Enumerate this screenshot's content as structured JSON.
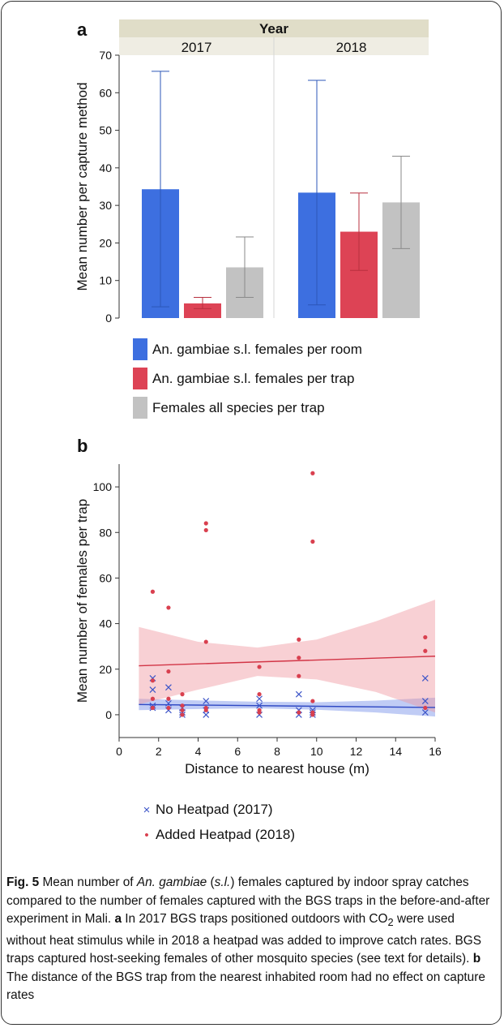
{
  "chart_data": [
    {
      "type": "bar",
      "panel_label": "a",
      "facet_title": "Year",
      "facets": [
        "2017",
        "2018"
      ],
      "ylabel": "Mean number per capture method",
      "ylim": [
        0,
        70
      ],
      "yticks": [
        0,
        10,
        20,
        30,
        40,
        50,
        60,
        70
      ],
      "series": [
        {
          "name": "An. gambiae s.l. females per room",
          "color": "#3d6fe0",
          "values": [
            34.3,
            33.4
          ],
          "err_low": [
            3,
            3.5
          ],
          "err_high": [
            65.7,
            63.3
          ]
        },
        {
          "name": "An. gambiae s.l. females per trap",
          "color": "#dd4355",
          "values": [
            3.9,
            23.0
          ],
          "err_low": [
            2.5,
            12.7
          ],
          "err_high": [
            5.5,
            33.3
          ]
        },
        {
          "name": "Females all species per trap",
          "color": "#c2c2c2",
          "values": [
            13.5,
            30.8
          ],
          "err_low": [
            5.5,
            18.5
          ],
          "err_high": [
            21.6,
            43.1
          ]
        }
      ]
    },
    {
      "type": "scatter",
      "panel_label": "b",
      "xlabel": "Distance to nearest house (m)",
      "ylabel": "Mean number of females per trap",
      "xlim": [
        0,
        16
      ],
      "ylim": [
        -10,
        110
      ],
      "xticks": [
        0,
        2,
        4,
        6,
        8,
        10,
        12,
        14,
        16
      ],
      "yticks": [
        0,
        20,
        40,
        60,
        80,
        100
      ],
      "series": [
        {
          "name": "No Heatpad (2017)",
          "marker": "×",
          "color": "#3d55c8",
          "points": [
            [
              1.7,
              16
            ],
            [
              1.7,
              11
            ],
            [
              1.7,
              4
            ],
            [
              1.7,
              3
            ],
            [
              2.5,
              12
            ],
            [
              2.5,
              5
            ],
            [
              2.5,
              2
            ],
            [
              3.2,
              3
            ],
            [
              3.2,
              1
            ],
            [
              3.2,
              0
            ],
            [
              4.4,
              6
            ],
            [
              4.4,
              2
            ],
            [
              4.4,
              0
            ],
            [
              7.1,
              7
            ],
            [
              7.1,
              4
            ],
            [
              7.1,
              0
            ],
            [
              9.1,
              9
            ],
            [
              9.1,
              2
            ],
            [
              9.1,
              0
            ],
            [
              9.8,
              2
            ],
            [
              9.8,
              1
            ],
            [
              9.8,
              0
            ],
            [
              15.5,
              16
            ],
            [
              15.5,
              6
            ],
            [
              15.5,
              1
            ]
          ],
          "fit": {
            "x": [
              1.0,
              16.0
            ],
            "y": [
              4.5,
              3.2
            ]
          },
          "band_upper": [
            7.0,
            6.3,
            5.7,
            5.5,
            6.2,
            7.5
          ],
          "band_lower": [
            2.0,
            2.5,
            2.8,
            2.2,
            1.0,
            -0.8
          ]
        },
        {
          "name": "Added Heatpad (2018)",
          "marker": "•",
          "color": "#d9404f",
          "points": [
            [
              1.7,
              54
            ],
            [
              1.7,
              15
            ],
            [
              1.7,
              7
            ],
            [
              1.7,
              3
            ],
            [
              2.5,
              47
            ],
            [
              2.5,
              19
            ],
            [
              2.5,
              7
            ],
            [
              2.5,
              3
            ],
            [
              3.2,
              9
            ],
            [
              3.2,
              4
            ],
            [
              3.2,
              2
            ],
            [
              3.2,
              0
            ],
            [
              4.4,
              84
            ],
            [
              4.4,
              81
            ],
            [
              4.4,
              32
            ],
            [
              4.4,
              3
            ],
            [
              4.4,
              2
            ],
            [
              7.1,
              21
            ],
            [
              7.1,
              9
            ],
            [
              7.1,
              2
            ],
            [
              7.1,
              1
            ],
            [
              9.1,
              33
            ],
            [
              9.1,
              25
            ],
            [
              9.1,
              17
            ],
            [
              9.1,
              1
            ],
            [
              9.8,
              106
            ],
            [
              9.8,
              76
            ],
            [
              9.8,
              6
            ],
            [
              9.8,
              1
            ],
            [
              9.8,
              0
            ],
            [
              15.5,
              34
            ],
            [
              15.5,
              28
            ],
            [
              15.5,
              3
            ]
          ],
          "fit": {
            "x": [
              1.0,
              16.0
            ],
            "y": [
              21.5,
              25.7
            ]
          },
          "band_upper": [
            38.5,
            32,
            29.5,
            33,
            41,
            50.5
          ],
          "band_lower": [
            4.5,
            11,
            17,
            15.5,
            10,
            1
          ]
        }
      ],
      "band_x": [
        1,
        4,
        7,
        10,
        13,
        16
      ]
    }
  ],
  "caption": {
    "label": "Fig. 5",
    "t1": "  Mean number of ",
    "species_it": "An. gambiae",
    "t2": " (",
    "sl_it": "s.l.",
    "t3": ") females captured by indoor spray catches compared to the number of females captured with the BGS traps in the before-and-after experiment in Mali. ",
    "a_label": "a",
    "t4": " In 2017 BGS traps positioned outdoors with CO",
    "sub": "2",
    "t5": " were used without heat stimulus while in 2018 a heatpad was added to improve catch rates. BGS traps captured host-seeking females of other mosquito species (see text for details). ",
    "b_label": "b",
    "t6": " The distance of the BGS trap from the nearest inhabited room had no effect on capture rates"
  }
}
